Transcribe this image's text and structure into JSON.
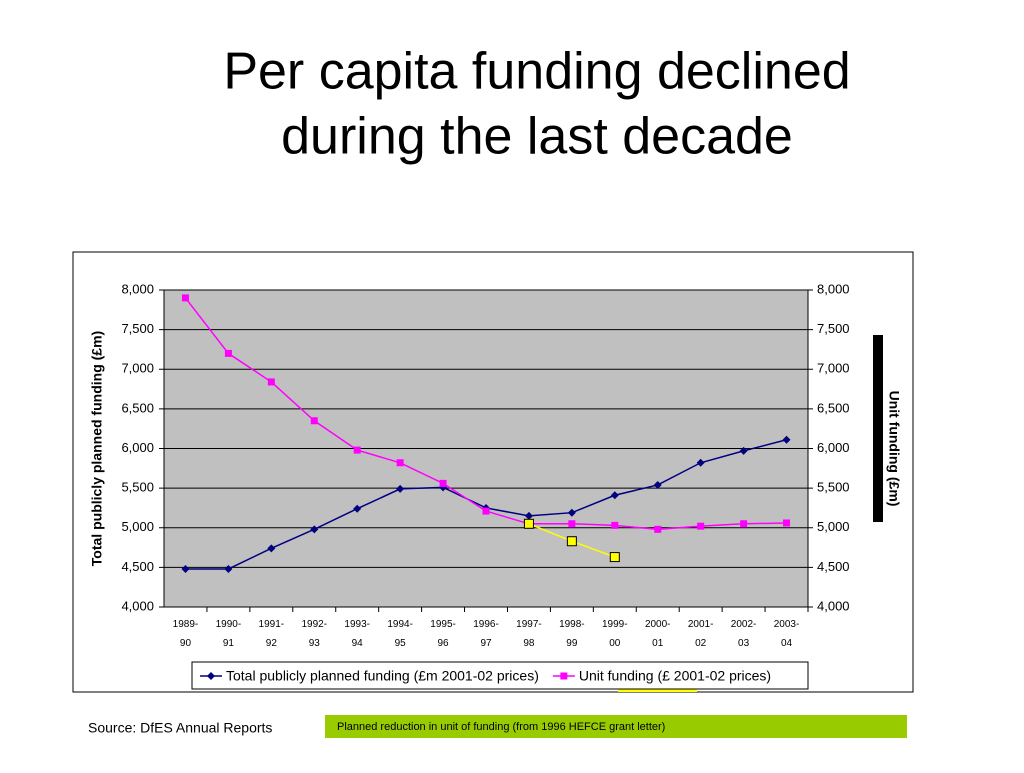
{
  "chart_data": {
    "type": "line",
    "title": [
      "Per capita funding declined",
      "during the last decade"
    ],
    "categories": [
      "1989-90",
      "1990-91",
      "1991-92",
      "1992-93",
      "1993-94",
      "1994-95",
      "1995-96",
      "1996-97",
      "1997-98",
      "1998-99",
      "1999-00",
      "2000-01",
      "2001-02",
      "2002-03",
      "2003-04"
    ],
    "series": [
      {
        "name": "Total publicly planned funding (£m 2001-02 prices)",
        "color": "#000080",
        "marker": "diamond",
        "values": [
          4480,
          4480,
          4740,
          4980,
          5240,
          5490,
          5510,
          5250,
          5150,
          5190,
          5410,
          5540,
          5820,
          5970,
          6110
        ]
      },
      {
        "name": "Unit funding (£ 2001-02 prices)",
        "color": "#ff00ff",
        "marker": "square",
        "axis": "y2",
        "values": [
          7900,
          7200,
          6840,
          6350,
          5980,
          5820,
          5560,
          5210,
          5050,
          5050,
          5030,
          4980,
          5020,
          5050,
          5060
        ]
      },
      {
        "color": "#ffff00",
        "marker": "square-outline",
        "axis": "y2",
        "values": [
          null,
          null,
          null,
          null,
          null,
          null,
          null,
          null,
          5050,
          4830,
          4630,
          null,
          null,
          null,
          null
        ]
      }
    ],
    "ylabel": "Total publicly planned funding (£m)",
    "y2label": "Unit funding (£m)",
    "ylim": [
      4000,
      8000
    ],
    "yticks": [
      {
        "value": 4000,
        "label": "4,000"
      },
      {
        "value": 4500,
        "label": "4,500"
      },
      {
        "value": 5000,
        "label": "5,000"
      },
      {
        "value": 5500,
        "label": "5,500"
      },
      {
        "value": 6000,
        "label": "6,000"
      },
      {
        "value": 6500,
        "label": "6,500"
      },
      {
        "value": 7000,
        "label": "7,000"
      },
      {
        "value": 7500,
        "label": "7,500"
      },
      {
        "value": 8000,
        "label": "8,000"
      }
    ],
    "y2lim": [
      4000,
      8000
    ],
    "y2ticks": [
      {
        "value": 4000,
        "label": "4,000"
      },
      {
        "value": 4500,
        "label": "4,500"
      },
      {
        "value": 5000,
        "label": "5,000"
      },
      {
        "value": 5500,
        "label": "5,500"
      },
      {
        "value": 6000,
        "label": "6,000"
      },
      {
        "value": 6500,
        "label": "6,500"
      },
      {
        "value": 7000,
        "label": "7,000"
      },
      {
        "value": 7500,
        "label": "7,500"
      },
      {
        "value": 8000,
        "label": "8,000"
      }
    ],
    "grid": true,
    "legend": "bottom",
    "source": "Source: DfES Annual Reports",
    "annotation": "Planned reduction in unit of funding (from 1996 HEFCE grant letter)"
  }
}
